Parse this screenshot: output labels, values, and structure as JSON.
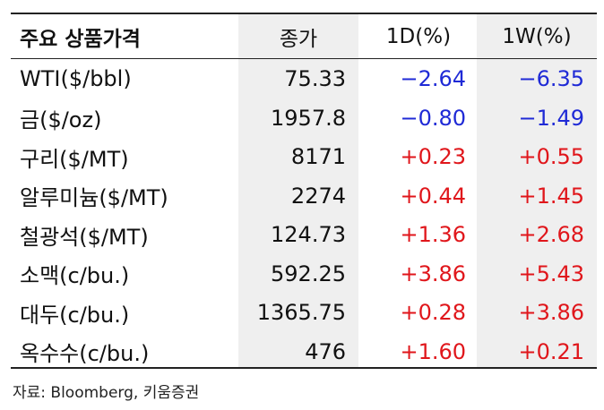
{
  "table": {
    "headers": [
      "주요 상품가격",
      "종가",
      "1D(%)",
      "1W(%)"
    ],
    "rows": [
      {
        "name": "WTI($/bbl)",
        "close": "75.33",
        "d1": "−2.64",
        "w1": "−6.35",
        "d1_sign": "neg",
        "w1_sign": "neg"
      },
      {
        "name": "금($/oz)",
        "close": "1957.8",
        "d1": "−0.80",
        "w1": "−1.49",
        "d1_sign": "neg",
        "w1_sign": "neg"
      },
      {
        "name": "구리($/MT)",
        "close": "8171",
        "d1": "+0.23",
        "w1": "+0.55",
        "d1_sign": "pos",
        "w1_sign": "pos"
      },
      {
        "name": "알루미늄($/MT)",
        "close": "2274",
        "d1": "+0.44",
        "w1": "+1.45",
        "d1_sign": "pos",
        "w1_sign": "pos"
      },
      {
        "name": "철광석($/MT)",
        "close": "124.73",
        "d1": "+1.36",
        "w1": "+2.68",
        "d1_sign": "pos",
        "w1_sign": "pos"
      },
      {
        "name": "소맥(c/bu.)",
        "close": "592.25",
        "d1": "+3.86",
        "w1": "+5.43",
        "d1_sign": "pos",
        "w1_sign": "pos"
      },
      {
        "name": "대두(c/bu.)",
        "close": "1365.75",
        "d1": "+0.28",
        "w1": "+3.86",
        "d1_sign": "pos",
        "w1_sign": "pos"
      },
      {
        "name": "옥수수(c/bu.)",
        "close": "476",
        "d1": "+1.60",
        "w1": "+0.21",
        "d1_sign": "pos",
        "w1_sign": "pos"
      }
    ]
  },
  "colors": {
    "negative": "#1f2ad6",
    "positive": "#e0161b",
    "shade": "#efefef"
  },
  "source": "자료: Bloomberg, 키움증권"
}
